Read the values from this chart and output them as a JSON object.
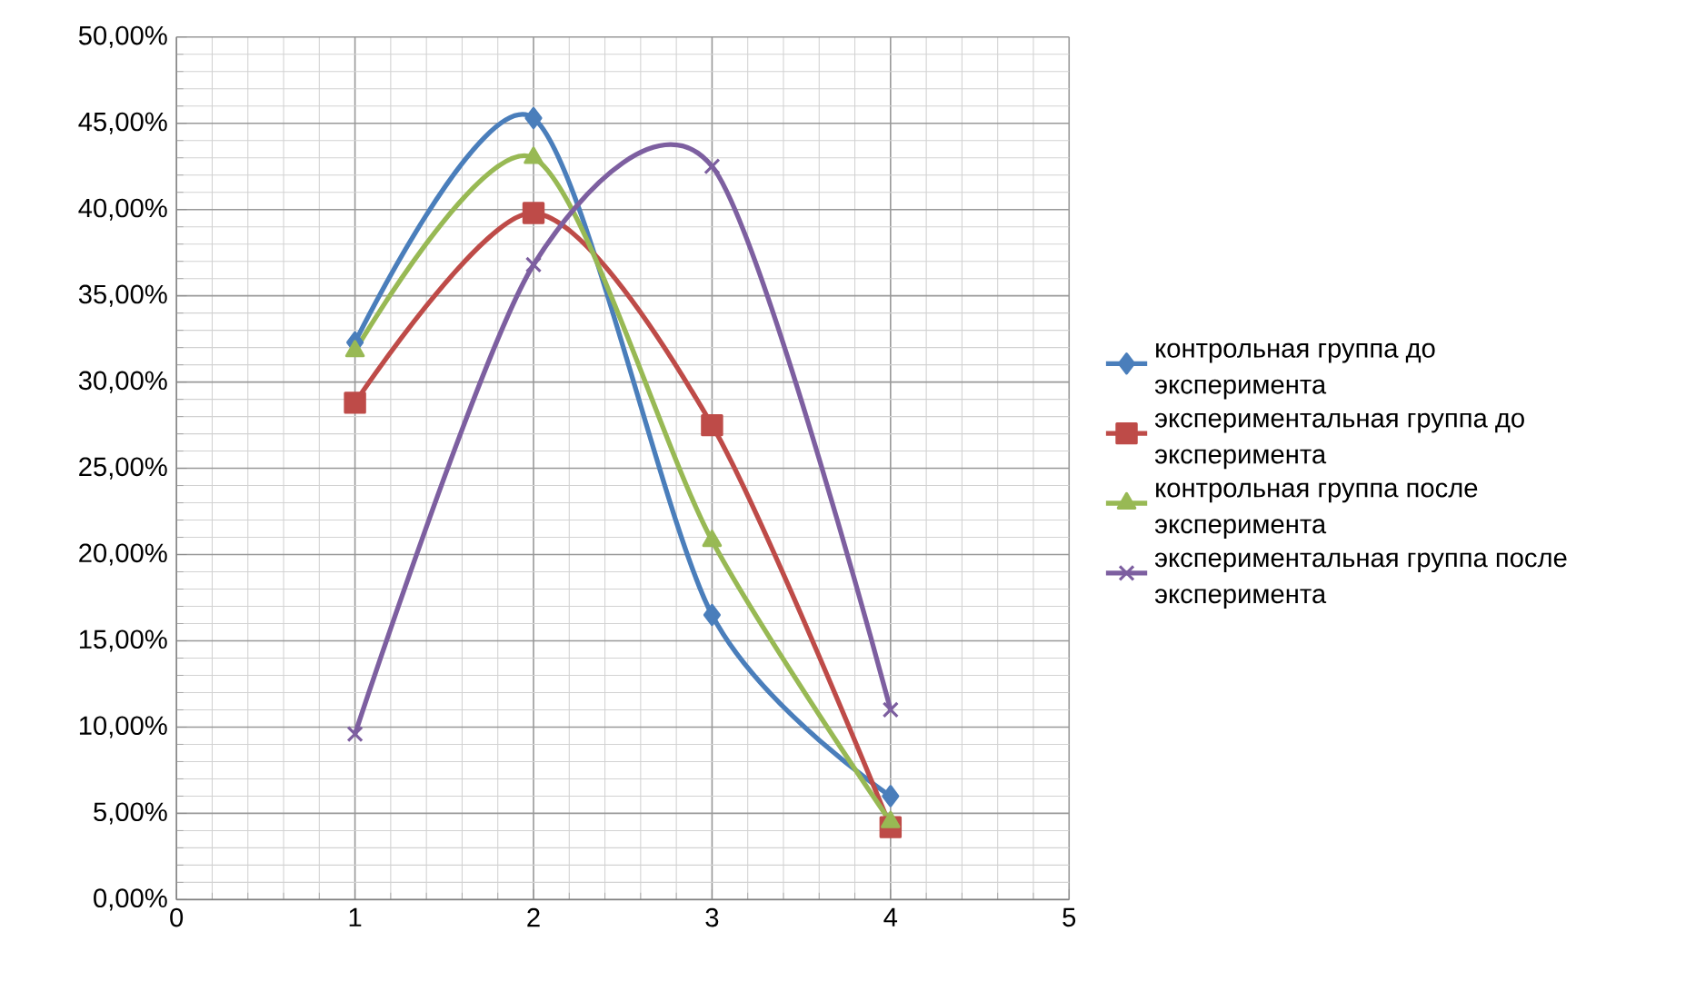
{
  "chart_data": {
    "type": "line",
    "x": [
      1,
      2,
      3,
      4
    ],
    "series": [
      {
        "name": "контрольная группа до эксперимента",
        "color": "#4a7ebb",
        "marker": "diamond",
        "values": [
          32.3,
          45.3,
          16.5,
          6.0
        ]
      },
      {
        "name": "экспериментальная группа до эксперимента",
        "color": "#be4b48",
        "marker": "square",
        "values": [
          28.8,
          39.8,
          27.5,
          4.2
        ]
      },
      {
        "name": "контрольная группа после эксперимента",
        "color": "#98b954",
        "marker": "triangle",
        "values": [
          31.8,
          43.0,
          20.8,
          4.5
        ]
      },
      {
        "name": "экспериментальная группа после эксперимента",
        "color": "#7d5fa0",
        "marker": "cross",
        "values": [
          9.6,
          36.8,
          42.5,
          11.0
        ]
      }
    ],
    "xlim": [
      0,
      5
    ],
    "xticks": [
      0,
      1,
      2,
      3,
      4,
      5
    ],
    "ylim": [
      0,
      50
    ],
    "yticks": [
      {
        "value": 0,
        "label": "0,00%"
      },
      {
        "value": 5,
        "label": "5,00%"
      },
      {
        "value": 10,
        "label": "10,00%"
      },
      {
        "value": 15,
        "label": "15,00%"
      },
      {
        "value": 20,
        "label": "20,00%"
      },
      {
        "value": 25,
        "label": "25,00%"
      },
      {
        "value": 30,
        "label": "30,00%"
      },
      {
        "value": 35,
        "label": "35,00%"
      },
      {
        "value": 40,
        "label": "40,00%"
      },
      {
        "value": 45,
        "label": "45,00%"
      },
      {
        "value": 50,
        "label": "50,00%"
      }
    ],
    "grid": true,
    "legend": "right"
  }
}
